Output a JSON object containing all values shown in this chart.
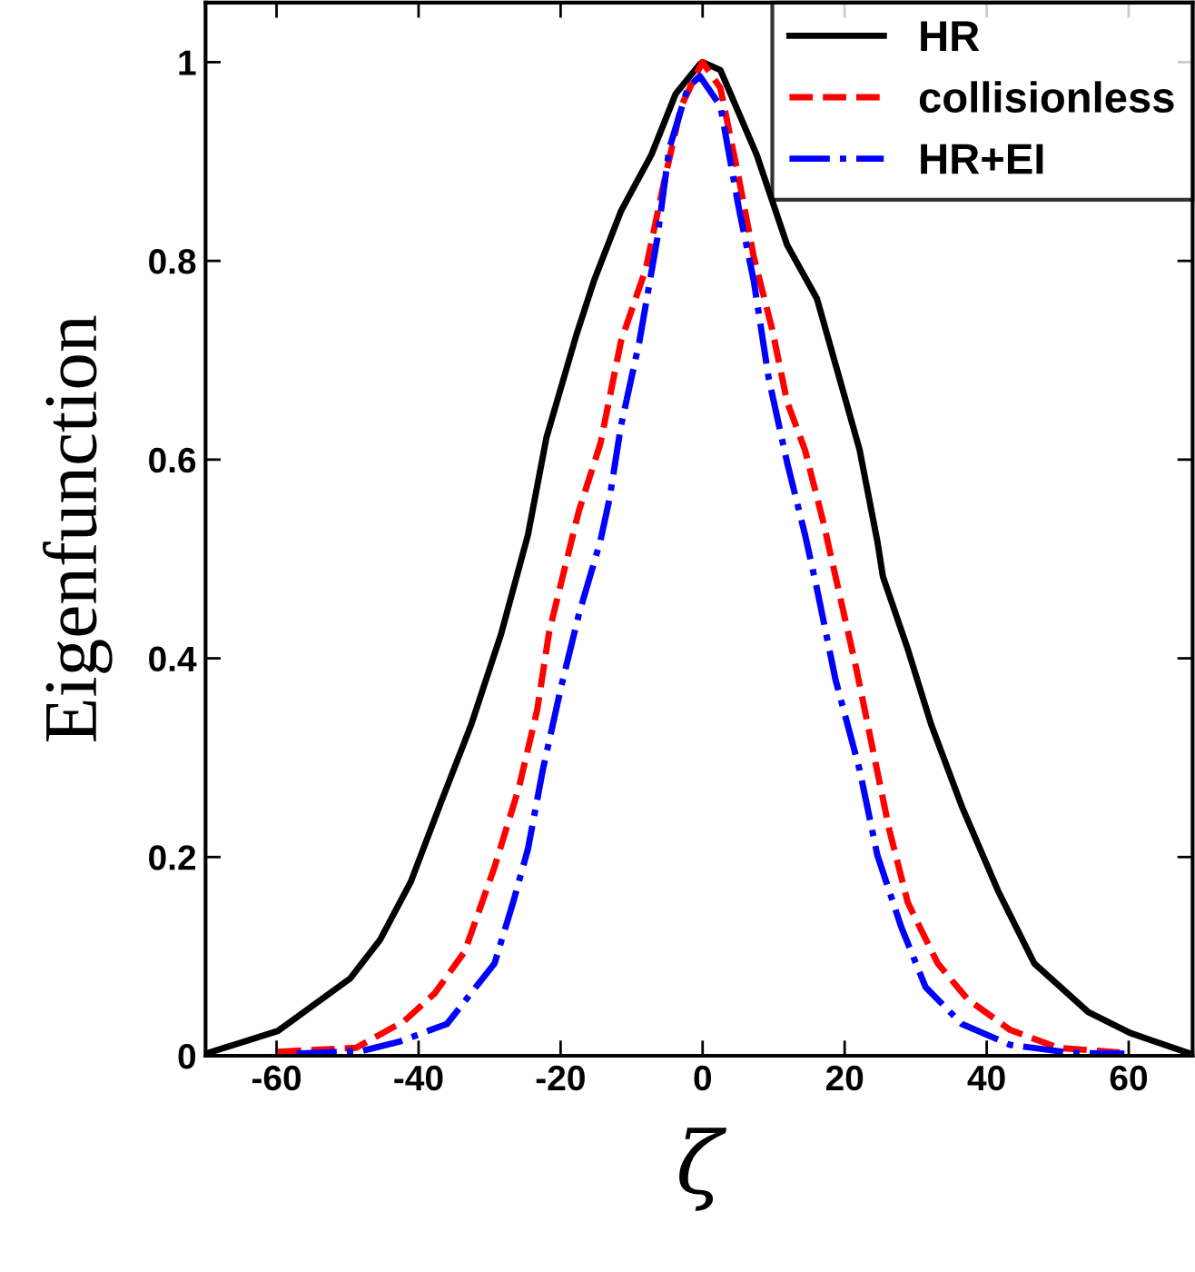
{
  "chart_data": {
    "type": "line",
    "xlabel": "ζ",
    "ylabel": "Eigenfunction",
    "xlim": [
      -70,
      69
    ],
    "ylim": [
      0,
      1.06
    ],
    "xticks": [
      -60,
      -40,
      -20,
      0,
      20,
      40,
      60
    ],
    "yticks": [
      0,
      0.2,
      0.4,
      0.6,
      0.8,
      1
    ],
    "legend": "top right",
    "grid": false,
    "series": [
      {
        "name": "HR",
        "color": "#000000",
        "line_style": "solid",
        "x": [
          -70,
          -59.8,
          -49.6,
          -45.4,
          -41.1,
          -36.9,
          -32.6,
          -28.4,
          -24.6,
          -22.0,
          -17.8,
          -15.3,
          -11.5,
          -7.2,
          -3.8,
          -0.4,
          0,
          2.5,
          7.6,
          11.9,
          16.1,
          19.5,
          22.1,
          24.6,
          25.4,
          28.9,
          32.2,
          36.5,
          41.6,
          46.7,
          54.3,
          60.2,
          68.3
        ],
        "values": [
          0.002,
          0.025,
          0.078,
          0.117,
          0.175,
          0.254,
          0.333,
          0.424,
          0.524,
          0.622,
          0.725,
          0.78,
          0.85,
          0.907,
          0.968,
          0.998,
          1.0,
          0.992,
          0.907,
          0.816,
          0.762,
          0.676,
          0.61,
          0.518,
          0.482,
          0.409,
          0.333,
          0.251,
          0.166,
          0.093,
          0.044,
          0.023,
          0.003
        ]
      },
      {
        "name": "collisionless",
        "color": "#ff0000",
        "line_style": "dashed",
        "x": [
          -59.8,
          -48.8,
          -42.0,
          -37.7,
          -33.5,
          -29.3,
          -25.9,
          -23.3,
          -21.6,
          -19.1,
          -17.4,
          -14.4,
          -11.5,
          -8.0,
          -5.5,
          -3.0,
          -0.4,
          0,
          2.5,
          5.1,
          7.2,
          9.8,
          11.9,
          14.4,
          17.0,
          19.1,
          21.6,
          24.2,
          26.3,
          28.9,
          33.1,
          37.3,
          43.3,
          50.1,
          59.4
        ],
        "values": [
          0.004,
          0.008,
          0.035,
          0.063,
          0.105,
          0.19,
          0.269,
          0.348,
          0.427,
          0.5,
          0.549,
          0.616,
          0.719,
          0.792,
          0.877,
          0.956,
          0.995,
          1.0,
          0.974,
          0.883,
          0.804,
          0.731,
          0.658,
          0.61,
          0.537,
          0.47,
          0.391,
          0.3,
          0.227,
          0.154,
          0.093,
          0.057,
          0.026,
          0.008,
          0.003
        ]
      },
      {
        "name": "HR+EI",
        "color": "#0000ff",
        "line_style": "dashdot",
        "x": [
          -57.2,
          -47.9,
          -42.8,
          -36.0,
          -32.6,
          -29.3,
          -26.7,
          -24.6,
          -22.5,
          -19.9,
          -17.4,
          -14.4,
          -13.1,
          -11.5,
          -8.9,
          -6.4,
          -4.7,
          -2.1,
          -0.4,
          2.5,
          5.1,
          7.2,
          9.3,
          11.9,
          14.4,
          16.1,
          18.7,
          22.1,
          24.6,
          28.0,
          31.4,
          36.5,
          43.3,
          51.8,
          59.4
        ],
        "values": [
          0.002,
          0.005,
          0.014,
          0.032,
          0.063,
          0.093,
          0.154,
          0.208,
          0.288,
          0.372,
          0.445,
          0.518,
          0.561,
          0.634,
          0.719,
          0.822,
          0.913,
          0.974,
          0.986,
          0.956,
          0.853,
          0.78,
          0.682,
          0.597,
          0.525,
          0.47,
          0.379,
          0.288,
          0.202,
          0.129,
          0.069,
          0.032,
          0.011,
          0.003,
          0.002
        ]
      }
    ]
  }
}
